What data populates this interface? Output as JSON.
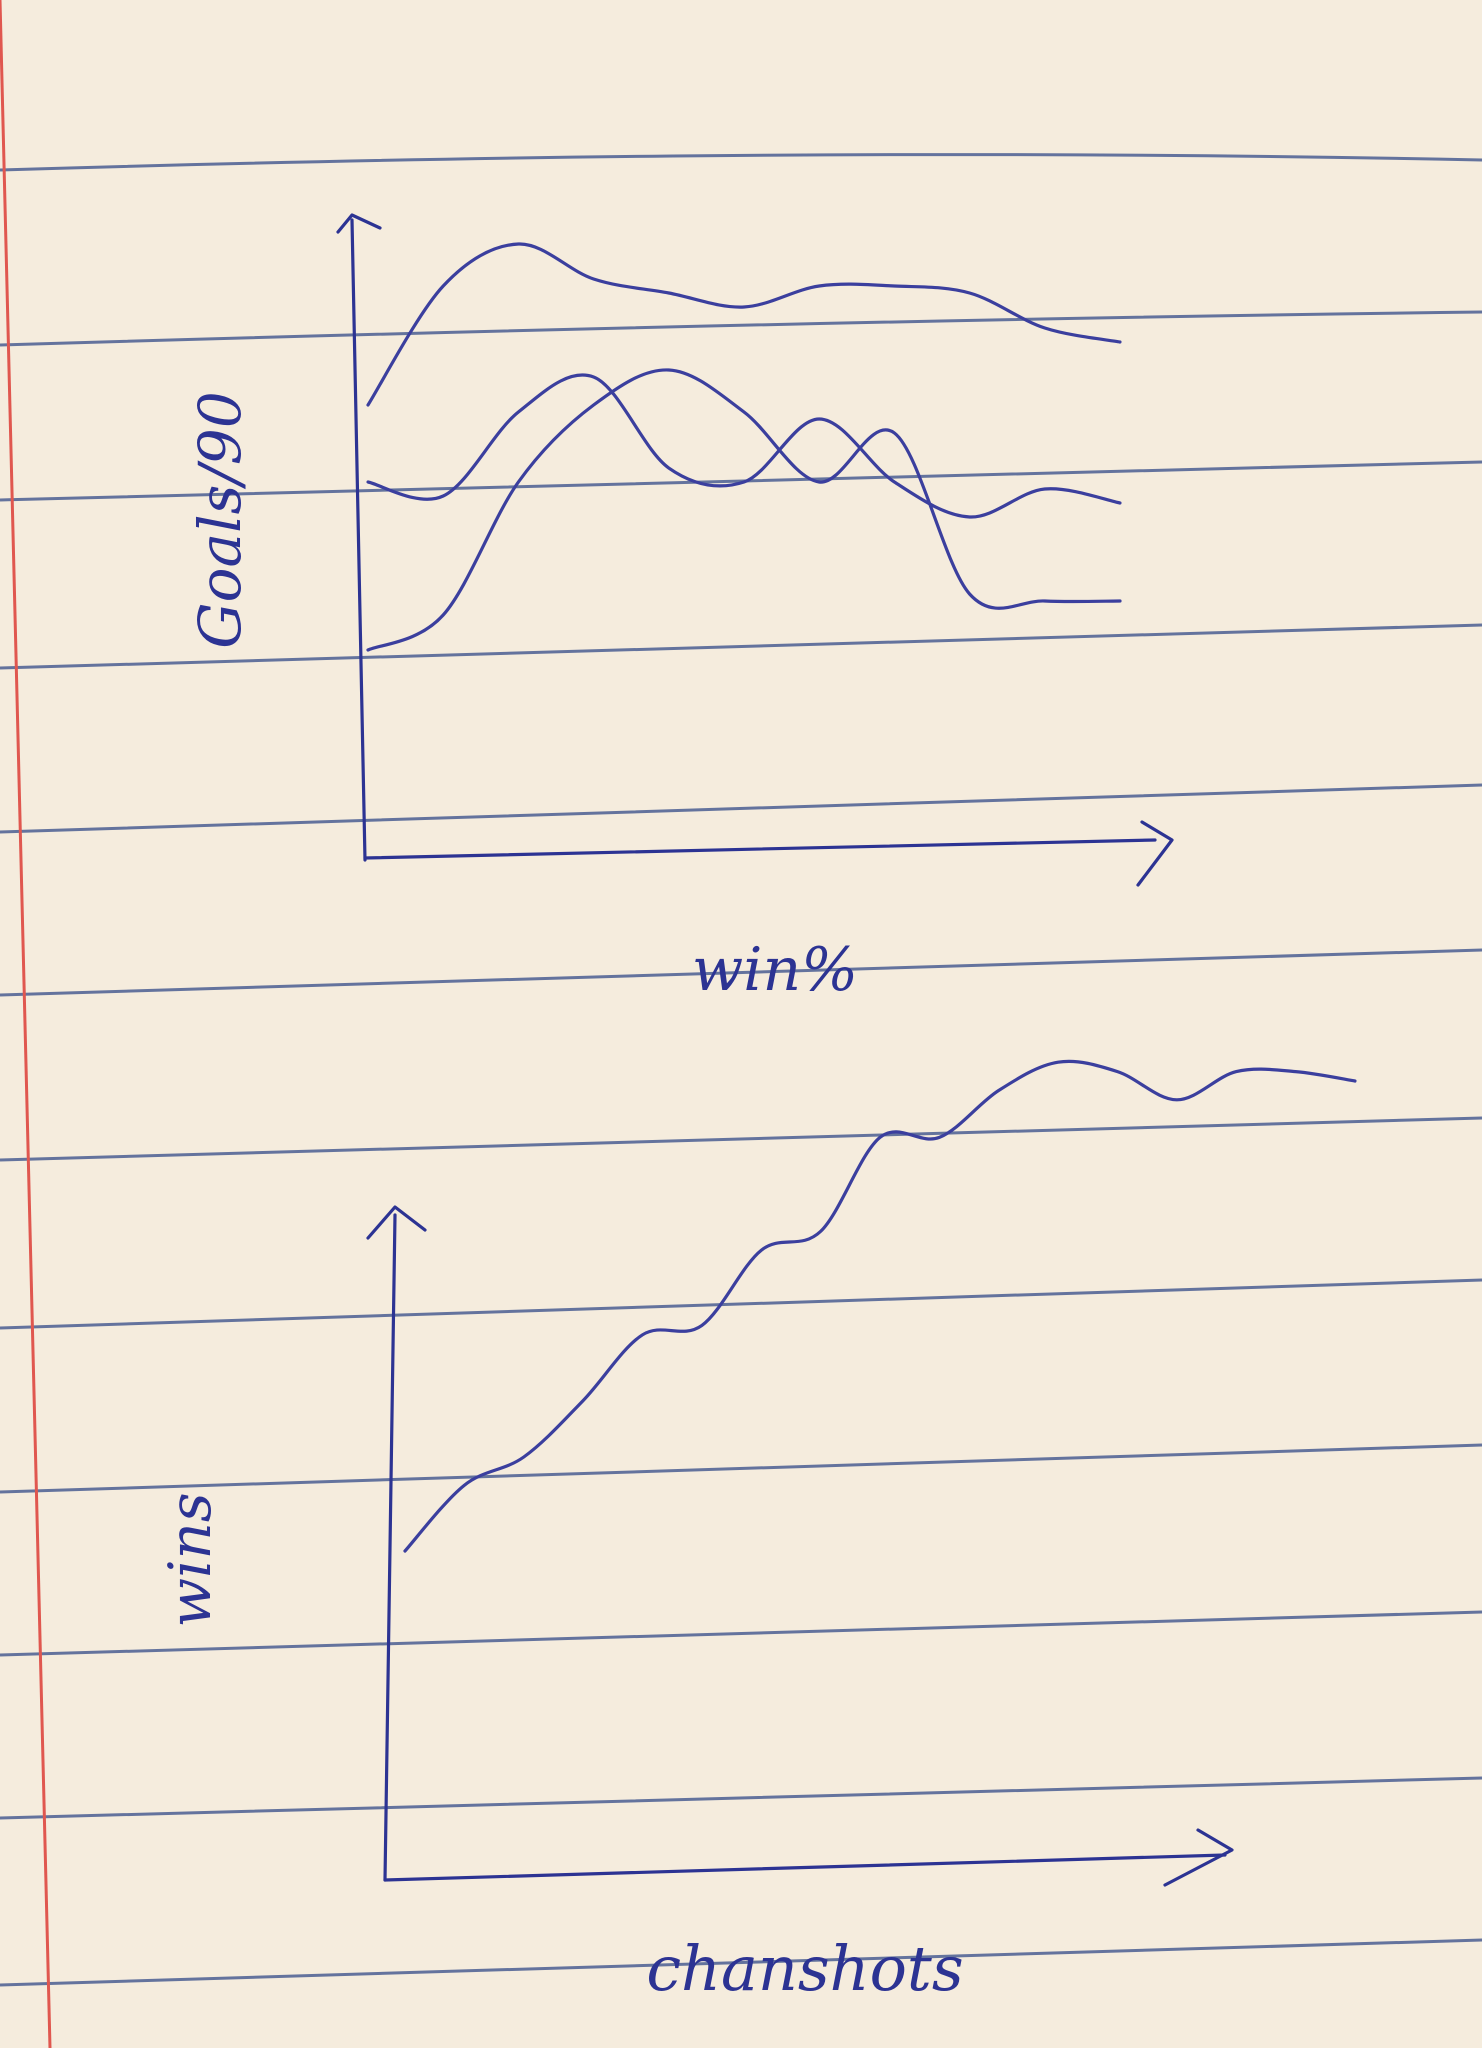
{
  "colors": {
    "paper": "#f5ecdd",
    "rule_lines": "#4a5e92",
    "margin_line": "#e0574f",
    "ink": "#2c3393"
  },
  "chart_data": [
    {
      "type": "line",
      "title": "",
      "xlabel": "win%",
      "ylabel": "Goals/90",
      "axis_ticks": "none",
      "grid": false,
      "legend": "none",
      "x": [
        0,
        1,
        2,
        3,
        4,
        5,
        6,
        7,
        8,
        9,
        10
      ],
      "series": [
        {
          "values": [
            0.65,
            0.82,
            0.88,
            0.83,
            0.81,
            0.79,
            0.82,
            0.82,
            0.81,
            0.76,
            0.74
          ]
        },
        {
          "values": [
            0.54,
            0.52,
            0.64,
            0.69,
            0.56,
            0.54,
            0.63,
            0.54,
            0.49,
            0.53,
            0.51
          ]
        },
        {
          "values": [
            0.3,
            0.35,
            0.54,
            0.65,
            0.7,
            0.64,
            0.54,
            0.61,
            0.38,
            0.37,
            0.37
          ]
        }
      ]
    },
    {
      "type": "line",
      "title": "",
      "xlabel": "chanshots",
      "ylabel": "wins",
      "axis_ticks": "none",
      "grid": false,
      "legend": "none",
      "x": [
        0,
        1,
        2,
        3,
        4,
        5,
        6,
        7,
        8,
        9,
        10,
        11,
        12,
        13,
        14,
        15,
        16
      ],
      "series": [
        {
          "values": [
            0.35,
            0.42,
            0.45,
            0.51,
            0.58,
            0.59,
            0.67,
            0.69,
            0.79,
            0.79,
            0.84,
            0.87,
            0.86,
            0.83,
            0.86,
            0.86,
            0.85
          ]
        }
      ]
    }
  ]
}
